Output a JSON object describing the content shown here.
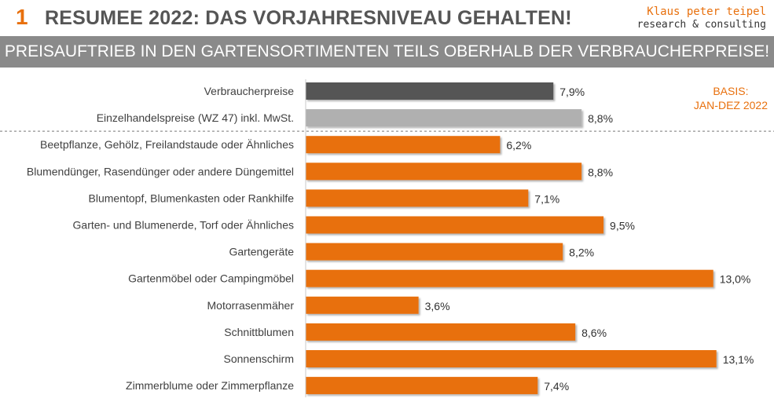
{
  "header": {
    "number": "1",
    "title": "RESUMEE 2022: DAS VORJAHRESNIVEAU GEHALTEN!",
    "brand_name": "Klaus peter teipel",
    "brand_sub": "research & consulting"
  },
  "subtitle": "PREISAUFTRIEB IN DEN GARTENSORTIMENTEN TEILS OBERHALB DER VERBRAUCHERPREISE!",
  "basis": {
    "line1": "BASIS:",
    "line2": "JAN-DEZ 2022"
  },
  "colors": {
    "accent": "#e8700d",
    "reference_dark": "#555555",
    "reference_light": "#b0b0b0",
    "subtitle_bar": "#8a8a8a"
  },
  "chart_data": {
    "type": "bar",
    "orientation": "horizontal",
    "grid": false,
    "value_unit": "%",
    "categories": [
      "Verbraucherpreise",
      "Einzelhandelspreise (WZ 47) inkl. MwSt.",
      "Beetpflanze, Gehölz, Freilandstaude oder Ähnliches",
      "Blumendünger, Rasendünger oder andere Düngemittel",
      "Blumentopf, Blumenkasten oder Rankhilfe",
      "Garten- und Blumenerde, Torf oder Ähnliches",
      "Gartengeräte",
      "Gartenmöbel oder Campingmöbel",
      "Motorrasenmäher",
      "Schnittblumen",
      "Sonnenschirm",
      "Zimmerblume oder Zimmerpflanze"
    ],
    "values": [
      7.9,
      8.8,
      6.2,
      8.8,
      7.1,
      9.5,
      8.2,
      13.0,
      3.6,
      8.6,
      13.1,
      7.4
    ],
    "value_labels": [
      "7,9%",
      "8,8%",
      "6,2%",
      "8,8%",
      "7,1%",
      "9,5%",
      "8,2%",
      "13,0%",
      "3,6%",
      "8,6%",
      "13,1%",
      "7,4%"
    ],
    "bar_colors": [
      "#555555",
      "#b0b0b0",
      "#e8700d",
      "#e8700d",
      "#e8700d",
      "#e8700d",
      "#e8700d",
      "#e8700d",
      "#e8700d",
      "#e8700d",
      "#e8700d",
      "#e8700d"
    ],
    "separator_after_index": 1
  }
}
